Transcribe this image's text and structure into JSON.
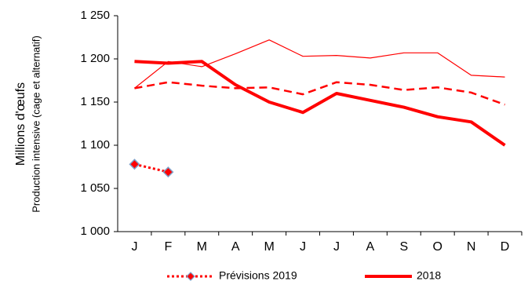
{
  "chart_data": {
    "type": "line",
    "y_label": [
      "Millions d'œufs",
      "Production intensive (cage et alternatif)"
    ],
    "categories": [
      "J",
      "F",
      "M",
      "A",
      "M",
      "J",
      "J",
      "A",
      "S",
      "O",
      "N",
      "D"
    ],
    "ylim": [
      1000,
      1250
    ],
    "yticks": [
      {
        "value": 1000,
        "label": "1 000"
      },
      {
        "value": 1050,
        "label": "1 050"
      },
      {
        "value": 1100,
        "label": "1 100"
      },
      {
        "value": 1150,
        "label": "1 150"
      },
      {
        "value": 1200,
        "label": "1 200"
      },
      {
        "value": 1250,
        "label": "1 250"
      }
    ],
    "grid": false,
    "legend": "bottom",
    "series": [
      {
        "color": "#ff0000",
        "style": "solid",
        "width": 1.2,
        "values": [
          1166,
          1197,
          1191,
          1206,
          1222,
          1203,
          1204,
          1201,
          1207,
          1207,
          1181,
          1179
        ]
      },
      {
        "color": "#ff0000",
        "style": "dashed",
        "width": 2.5,
        "values": [
          1166,
          1173,
          1169,
          1166,
          1167,
          1159,
          1173,
          1170,
          1164,
          1167,
          1161,
          1147
        ]
      },
      {
        "name": "Prévisions 2019",
        "color": "#ff0000",
        "style": "dotted",
        "width": 3,
        "marker": "diamond",
        "values": [
          1078,
          1069,
          null,
          null,
          null,
          null,
          null,
          null,
          null,
          null,
          null,
          null
        ]
      },
      {
        "name": "2018",
        "color": "#ff0000",
        "style": "solid",
        "width": 4,
        "values": [
          1197,
          1195,
          1197,
          1170,
          1150,
          1138,
          1160,
          1152,
          1144,
          1133,
          1127,
          1100
        ]
      }
    ]
  }
}
